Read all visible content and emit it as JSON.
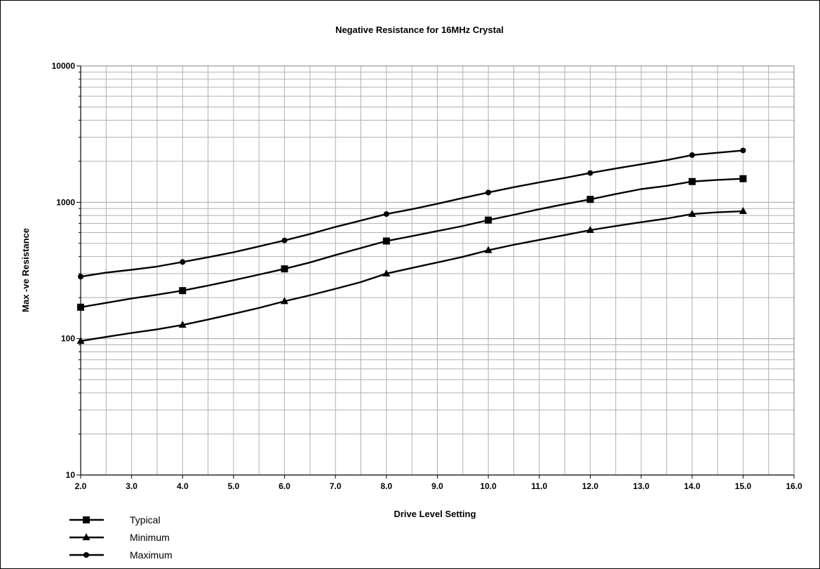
{
  "chart_data": {
    "type": "line",
    "title": "Negative Resistance for 16MHz Crystal",
    "xlabel": "Drive Level Setting",
    "ylabel": "Max -ve Resistance",
    "xlim": [
      2,
      16
    ],
    "ylim": [
      10,
      10000
    ],
    "y_scale": "log",
    "grid": true,
    "legend_position": "bottom-left",
    "x_ticks": [
      "2.0",
      "3.0",
      "4.0",
      "5.0",
      "6.0",
      "7.0",
      "8.0",
      "9.0",
      "10.0",
      "11.0",
      "12.0",
      "13.0",
      "14.0",
      "15.0",
      "16.0"
    ],
    "y_ticks": [
      "10",
      "100",
      "1000",
      "10000"
    ],
    "series": [
      {
        "name": "Typical",
        "marker": "square",
        "x": [
          2,
          2.5,
          3,
          3.5,
          4,
          4.5,
          5,
          5.5,
          6,
          6.5,
          7,
          7.5,
          8,
          8.5,
          9,
          9.5,
          10,
          10.5,
          11,
          11.5,
          12,
          12.5,
          13,
          13.5,
          14,
          14.5,
          15
        ],
        "y": [
          170,
          183,
          197,
          210,
          225,
          245,
          268,
          295,
          325,
          362,
          410,
          462,
          520,
          565,
          615,
          670,
          740,
          810,
          890,
          970,
          1050,
          1150,
          1250,
          1320,
          1420,
          1460,
          1490
        ],
        "marked_x": [
          2,
          4,
          6,
          8,
          10,
          12,
          14,
          15
        ]
      },
      {
        "name": "Minimum",
        "marker": "triangle",
        "x": [
          2,
          2.5,
          3,
          3.5,
          4,
          4.5,
          5,
          5.5,
          6,
          6.5,
          7,
          7.5,
          8,
          8.5,
          9,
          9.5,
          10,
          10.5,
          11,
          11.5,
          12,
          12.5,
          13,
          13.5,
          14,
          14.5,
          15
        ],
        "y": [
          96,
          103,
          110,
          117,
          126,
          138,
          152,
          168,
          188,
          208,
          232,
          260,
          300,
          330,
          362,
          398,
          445,
          488,
          530,
          575,
          625,
          670,
          715,
          760,
          820,
          845,
          860
        ],
        "marked_x": [
          2,
          4,
          6,
          8,
          10,
          12,
          14,
          15
        ]
      },
      {
        "name": "Maximum",
        "marker": "circle",
        "x": [
          2,
          2.5,
          3,
          3.5,
          4,
          4.5,
          5,
          5.5,
          6,
          6.5,
          7,
          7.5,
          8,
          8.5,
          9,
          9.5,
          10,
          10.5,
          11,
          11.5,
          12,
          12.5,
          13,
          13.5,
          14,
          14.5,
          15
        ],
        "y": [
          285,
          305,
          320,
          338,
          365,
          395,
          430,
          475,
          525,
          585,
          660,
          735,
          820,
          890,
          975,
          1075,
          1180,
          1290,
          1400,
          1510,
          1640,
          1770,
          1900,
          2040,
          2220,
          2310,
          2400
        ],
        "marked_x": [
          2,
          4,
          6,
          8,
          10,
          12,
          14,
          15
        ]
      }
    ]
  }
}
